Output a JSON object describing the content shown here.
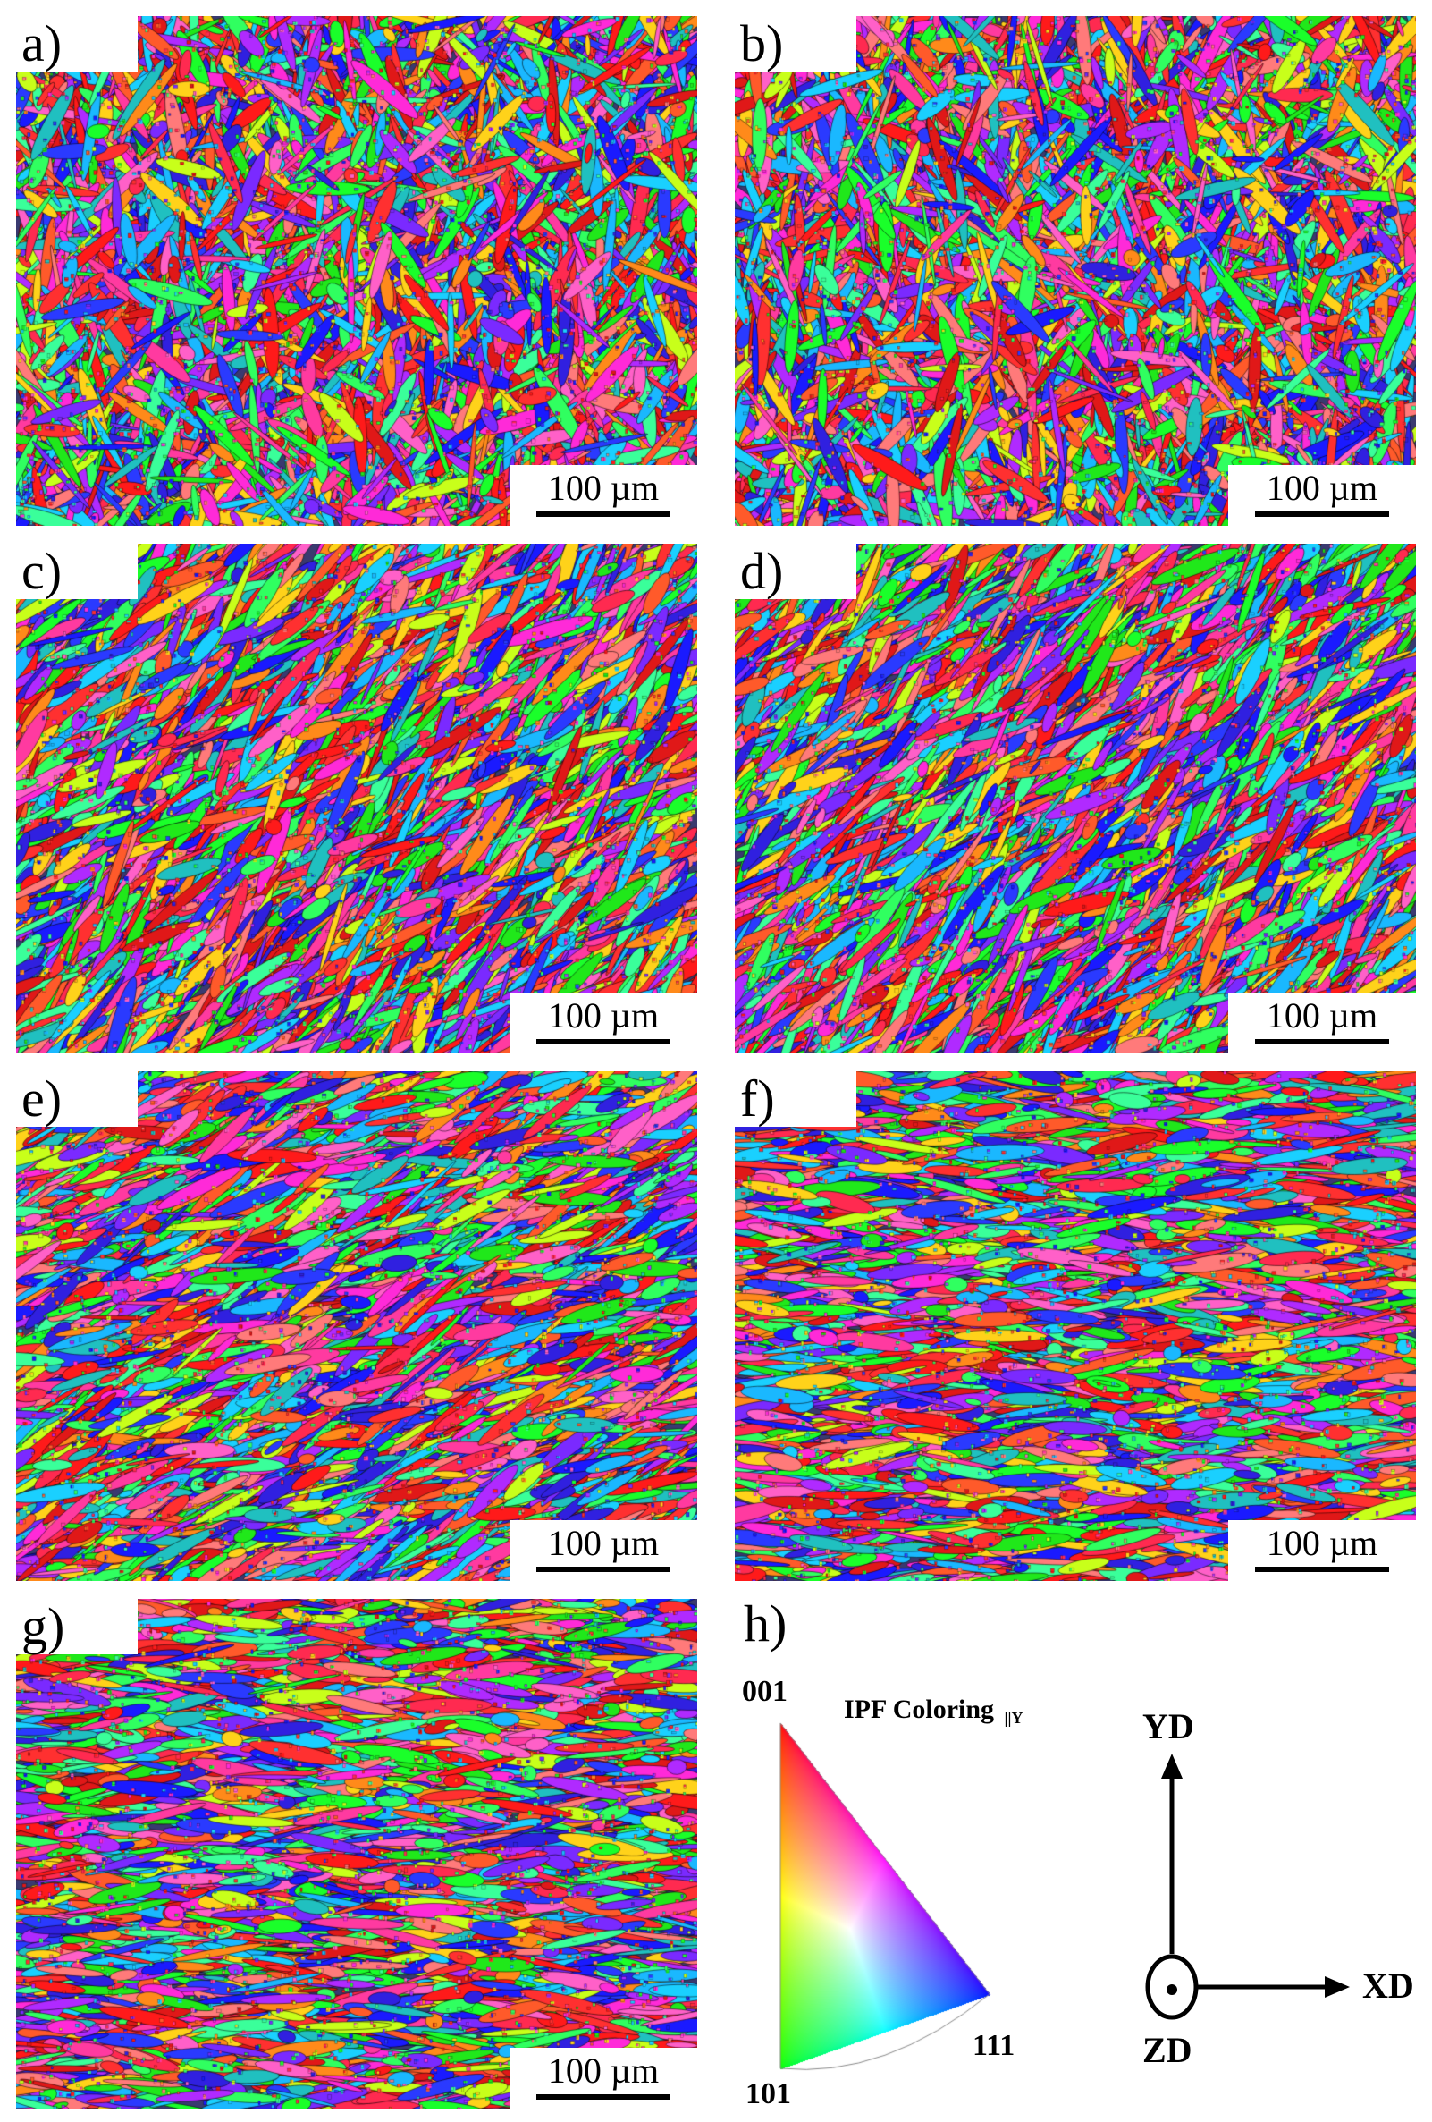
{
  "panels": [
    {
      "letter": "a)",
      "scale_label": "100 µm",
      "orientation": "mixed"
    },
    {
      "letter": "b)",
      "scale_label": "100 µm",
      "orientation": "mixed"
    },
    {
      "letter": "c)",
      "scale_label": "100 µm",
      "orientation": "diagonal"
    },
    {
      "letter": "d)",
      "scale_label": "100 µm",
      "orientation": "diagonal"
    },
    {
      "letter": "e)",
      "scale_label": "100 µm",
      "orientation": "diagonal-low"
    },
    {
      "letter": "f)",
      "scale_label": "100 µm",
      "orientation": "horizontal"
    },
    {
      "letter": "g)",
      "scale_label": "100 µm",
      "orientation": "horizontal"
    }
  ],
  "legend": {
    "letter": "h)",
    "title": "IPF Coloring",
    "title_suffix": "||Y",
    "corner_top": "001",
    "corner_bottom_left": "101",
    "corner_bottom_right": "111",
    "corner_colors": {
      "001": "#ff0000",
      "101": "#00ff00",
      "111": "#0000ff"
    }
  },
  "axes": {
    "up_label": "YD",
    "right_label": "XD",
    "out_label": "ZD"
  }
}
